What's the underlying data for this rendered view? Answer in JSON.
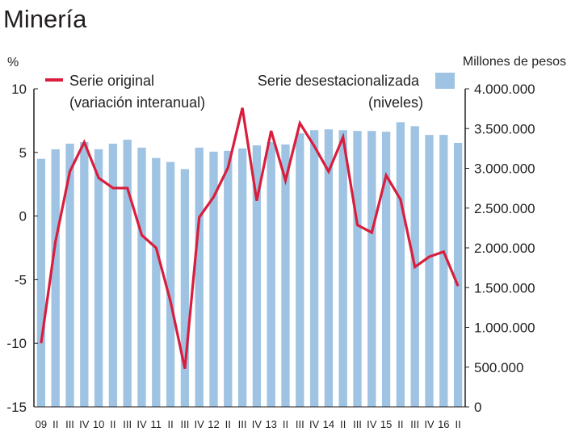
{
  "chart_data": {
    "type": "bar+line",
    "title": "Minería",
    "left_axis": {
      "unit_label": "%",
      "ylim": [
        -15,
        10
      ],
      "ticks": [
        10,
        5,
        0,
        -5,
        -10,
        -15
      ],
      "tick_labels": [
        "10",
        "5",
        "0",
        "-5",
        "-10",
        "-15"
      ]
    },
    "right_axis": {
      "unit_label": "Millones de pesos",
      "ylim": [
        0,
        4000000
      ],
      "ticks": [
        4000000,
        3500000,
        3000000,
        2500000,
        2000000,
        1500000,
        1000000,
        500000,
        0
      ],
      "tick_labels": [
        "4.000.000",
        "3.500.000",
        "3.000.000",
        "2.500.000",
        "2.000.000",
        "1.500.000",
        "1.000.000",
        "500.000",
        "0"
      ]
    },
    "x_tick_labels": [
      "09",
      "II",
      "III",
      "IV",
      "10",
      "II",
      "III",
      "IV",
      "11",
      "II",
      "III",
      "IV",
      "12",
      "II",
      "III",
      "IV",
      "13",
      "II",
      "III",
      "IV",
      "14",
      "II",
      "III",
      "IV",
      "15",
      "II",
      "III",
      "IV",
      "16",
      "II"
    ],
    "series": [
      {
        "name": "Serie desestacionalizada\n(niveles)",
        "type": "bar",
        "axis": "right",
        "color": "#9ec3e3",
        "values": [
          3120000,
          3240000,
          3310000,
          3330000,
          3240000,
          3310000,
          3360000,
          3260000,
          3130000,
          3080000,
          2990000,
          3260000,
          3210000,
          3220000,
          3250000,
          3290000,
          3330000,
          3300000,
          3440000,
          3480000,
          3490000,
          3480000,
          3470000,
          3470000,
          3460000,
          3580000,
          3530000,
          3420000,
          3420000,
          3320000
        ]
      },
      {
        "name": "Serie original\n(variación interanual)",
        "type": "line",
        "axis": "left",
        "color": "#d81e3c",
        "values": [
          -10.0,
          -2.0,
          3.5,
          5.8,
          3.0,
          2.2,
          2.2,
          -1.5,
          -2.5,
          -6.7,
          -12.0,
          -0.1,
          1.5,
          3.8,
          8.5,
          1.2,
          6.7,
          2.8,
          7.3,
          5.5,
          3.5,
          6.2,
          -0.7,
          -1.3,
          3.2,
          1.3,
          -4.0,
          -3.2,
          -2.8,
          -5.5
        ]
      }
    ],
    "legend": [
      {
        "label": "Serie original\n(variación interanual)",
        "symbol": "line",
        "placement": "top-left"
      },
      {
        "label": "Serie desestacionalizada\n(niveles)",
        "symbol": "bar",
        "placement": "top-right"
      }
    ],
    "grid": false
  }
}
